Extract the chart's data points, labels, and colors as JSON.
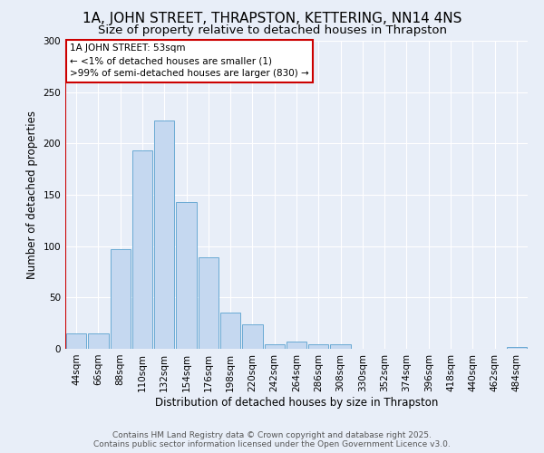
{
  "title": "1A, JOHN STREET, THRAPSTON, KETTERING, NN14 4NS",
  "subtitle": "Size of property relative to detached houses in Thrapston",
  "xlabel": "Distribution of detached houses by size in Thrapston",
  "ylabel": "Number of detached properties",
  "bins": [
    "44sqm",
    "66sqm",
    "88sqm",
    "110sqm",
    "132sqm",
    "154sqm",
    "176sqm",
    "198sqm",
    "220sqm",
    "242sqm",
    "264sqm",
    "286sqm",
    "308sqm",
    "330sqm",
    "352sqm",
    "374sqm",
    "396sqm",
    "418sqm",
    "440sqm",
    "462sqm",
    "484sqm"
  ],
  "values": [
    15,
    15,
    97,
    193,
    222,
    143,
    89,
    35,
    24,
    4,
    7,
    4,
    4,
    0,
    0,
    0,
    0,
    0,
    0,
    0,
    2
  ],
  "bar_color": "#c5d8f0",
  "bar_edge_color": "#6aaad4",
  "vline_color": "#cc0000",
  "annotation_text": "1A JOHN STREET: 53sqm\n← <1% of detached houses are smaller (1)\n>99% of semi-detached houses are larger (830) →",
  "annotation_box_color": "#ffffff",
  "annotation_box_edge": "#cc0000",
  "ylim": [
    0,
    300
  ],
  "yticks": [
    0,
    50,
    100,
    150,
    200,
    250,
    300
  ],
  "footer": "Contains HM Land Registry data © Crown copyright and database right 2025.\nContains public sector information licensed under the Open Government Licence v3.0.",
  "bg_color": "#e8eef8",
  "grid_color": "#ffffff",
  "title_fontsize": 11,
  "subtitle_fontsize": 9.5,
  "axis_label_fontsize": 8.5,
  "tick_fontsize": 7.5,
  "footer_fontsize": 6.5
}
